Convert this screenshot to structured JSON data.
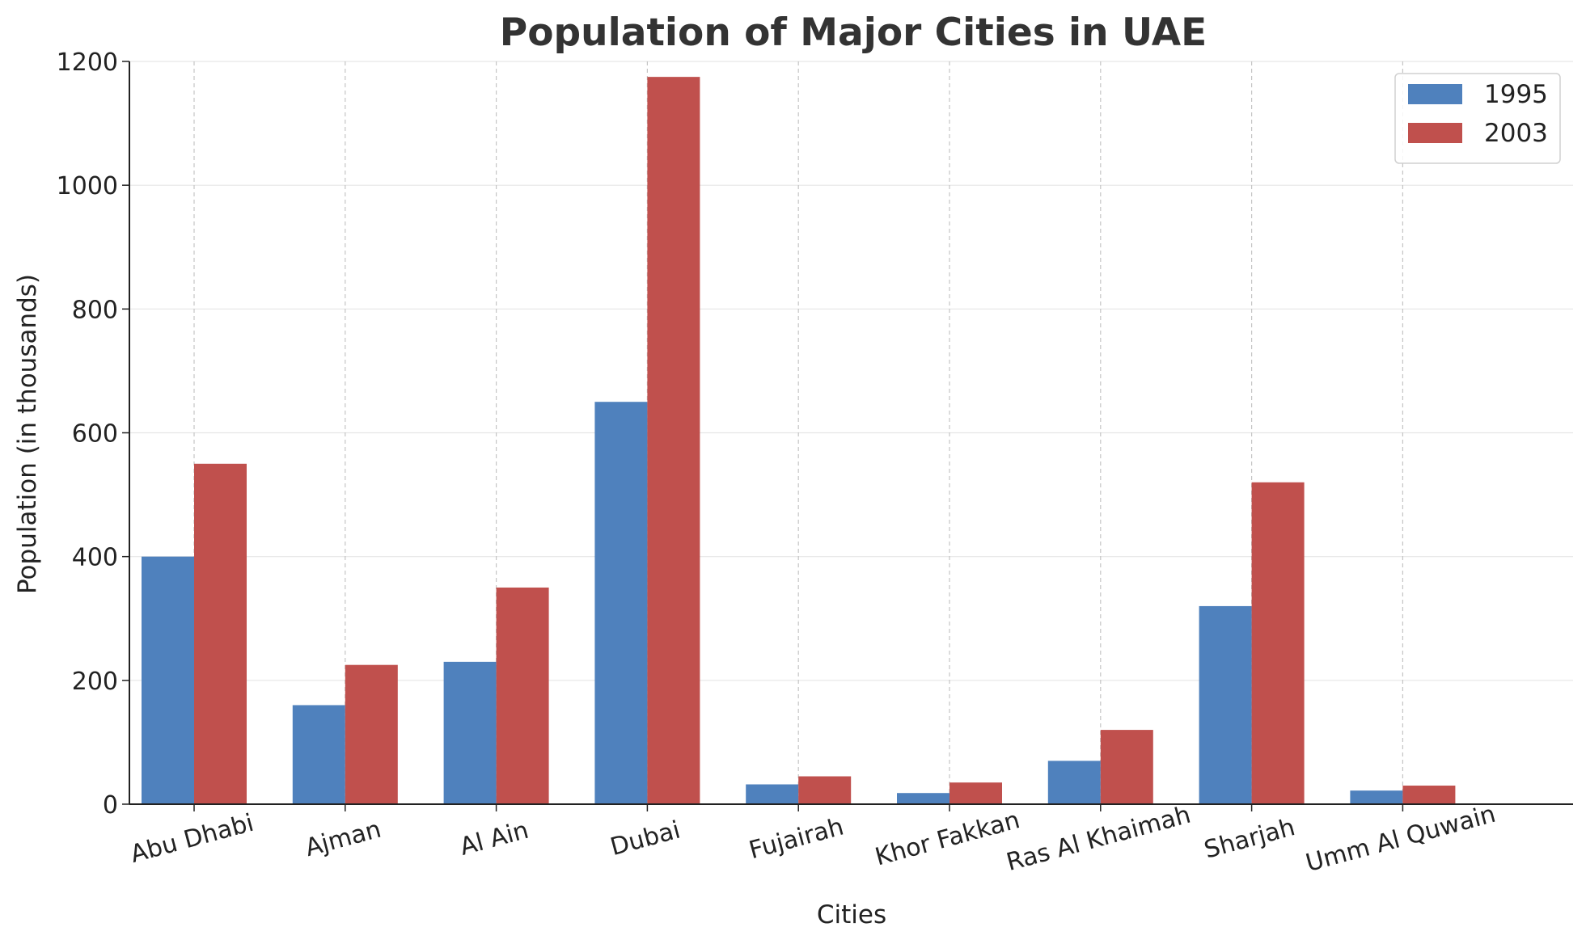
{
  "chart_data": {
    "type": "bar",
    "title": "Population of Major Cities in UAE",
    "xlabel": "Cities",
    "ylabel": "Population (in thousands)",
    "categories": [
      "Abu Dhabi",
      "Ajman",
      "Al Ain",
      "Dubai",
      "Fujairah",
      "Khor Fakkan",
      "Ras Al Khaimah",
      "Sharjah",
      "Umm Al Quwain"
    ],
    "series": [
      {
        "name": "1995",
        "color": "#4f81bd",
        "values": [
          400,
          160,
          230,
          650,
          32,
          18,
          70,
          320,
          22
        ]
      },
      {
        "name": "2003",
        "color": "#c0504d",
        "values": [
          550,
          225,
          350,
          1175,
          45,
          35,
          120,
          520,
          30
        ]
      }
    ],
    "ylim": [
      0,
      1200
    ],
    "yticks": [
      0,
      200,
      400,
      600,
      800,
      1000,
      1200
    ],
    "grid": true,
    "legend_position": "top-right",
    "xtick_rotation": "15 degrees"
  }
}
